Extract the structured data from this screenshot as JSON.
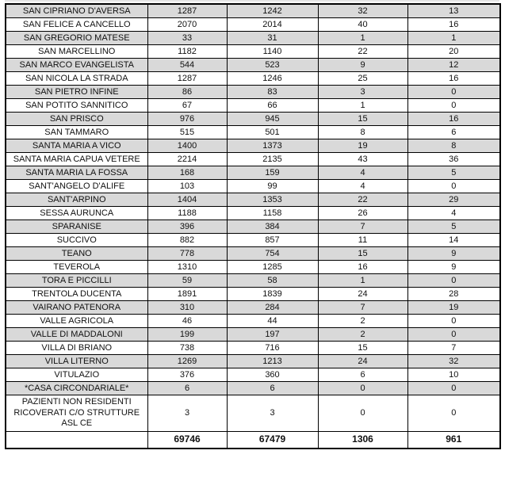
{
  "colors": {
    "row_alternate_shade": "#d9d9d9",
    "row_plain": "#ffffff",
    "border": "#000000",
    "text": "#111111"
  },
  "table": {
    "rows": [
      {
        "name": "SAN CIPRIANO D'AVERSA",
        "values": [
          1287,
          1242,
          32,
          13
        ]
      },
      {
        "name": "SAN FELICE A CANCELLO",
        "values": [
          2070,
          2014,
          40,
          16
        ]
      },
      {
        "name": "SAN GREGORIO MATESE",
        "values": [
          33,
          31,
          1,
          1
        ]
      },
      {
        "name": "SAN MARCELLINO",
        "values": [
          1182,
          1140,
          22,
          20
        ]
      },
      {
        "name": "SAN MARCO EVANGELISTA",
        "values": [
          544,
          523,
          9,
          12
        ]
      },
      {
        "name": "SAN NICOLA LA STRADA",
        "values": [
          1287,
          1246,
          25,
          16
        ]
      },
      {
        "name": "SAN PIETRO INFINE",
        "values": [
          86,
          83,
          3,
          0
        ]
      },
      {
        "name": "SAN POTITO SANNITICO",
        "values": [
          67,
          66,
          1,
          0
        ]
      },
      {
        "name": "SAN PRISCO",
        "values": [
          976,
          945,
          15,
          16
        ]
      },
      {
        "name": "SAN TAMMARO",
        "values": [
          515,
          501,
          8,
          6
        ]
      },
      {
        "name": "SANTA MARIA A VICO",
        "values": [
          1400,
          1373,
          19,
          8
        ]
      },
      {
        "name": "SANTA MARIA CAPUA VETERE",
        "values": [
          2214,
          2135,
          43,
          36
        ]
      },
      {
        "name": "SANTA MARIA LA FOSSA",
        "values": [
          168,
          159,
          4,
          5
        ]
      },
      {
        "name": "SANT'ANGELO D'ALIFE",
        "values": [
          103,
          99,
          4,
          0
        ]
      },
      {
        "name": "SANT'ARPINO",
        "values": [
          1404,
          1353,
          22,
          29
        ]
      },
      {
        "name": "SESSA AURUNCA",
        "values": [
          1188,
          1158,
          26,
          4
        ]
      },
      {
        "name": "SPARANISE",
        "values": [
          396,
          384,
          7,
          5
        ]
      },
      {
        "name": "SUCCIVO",
        "values": [
          882,
          857,
          11,
          14
        ]
      },
      {
        "name": "TEANO",
        "values": [
          778,
          754,
          15,
          9
        ]
      },
      {
        "name": "TEVEROLA",
        "values": [
          1310,
          1285,
          16,
          9
        ]
      },
      {
        "name": "TORA E PICCILLI",
        "values": [
          59,
          58,
          1,
          0
        ]
      },
      {
        "name": "TRENTOLA DUCENTA",
        "values": [
          1891,
          1839,
          24,
          28
        ]
      },
      {
        "name": "VAIRANO PATENORA",
        "values": [
          310,
          284,
          7,
          19
        ]
      },
      {
        "name": "VALLE AGRICOLA",
        "values": [
          46,
          44,
          2,
          0
        ]
      },
      {
        "name": "VALLE DI MADDALONI",
        "values": [
          199,
          197,
          2,
          0
        ]
      },
      {
        "name": "VILLA DI BRIANO",
        "values": [
          738,
          716,
          15,
          7
        ]
      },
      {
        "name": "VILLA LITERNO",
        "values": [
          1269,
          1213,
          24,
          32
        ]
      },
      {
        "name": "VITULAZIO",
        "values": [
          376,
          360,
          6,
          10
        ]
      },
      {
        "name": "*CASA CIRCONDARIALE*",
        "values": [
          6,
          6,
          0,
          0
        ]
      },
      {
        "name": "PAZIENTI NON RESIDENTI RICOVERATI C/O STRUTTURE ASL CE",
        "values": [
          3,
          3,
          0,
          0
        ]
      }
    ],
    "totals": {
      "label": "",
      "values": [
        69746,
        67479,
        1306,
        961
      ]
    }
  }
}
